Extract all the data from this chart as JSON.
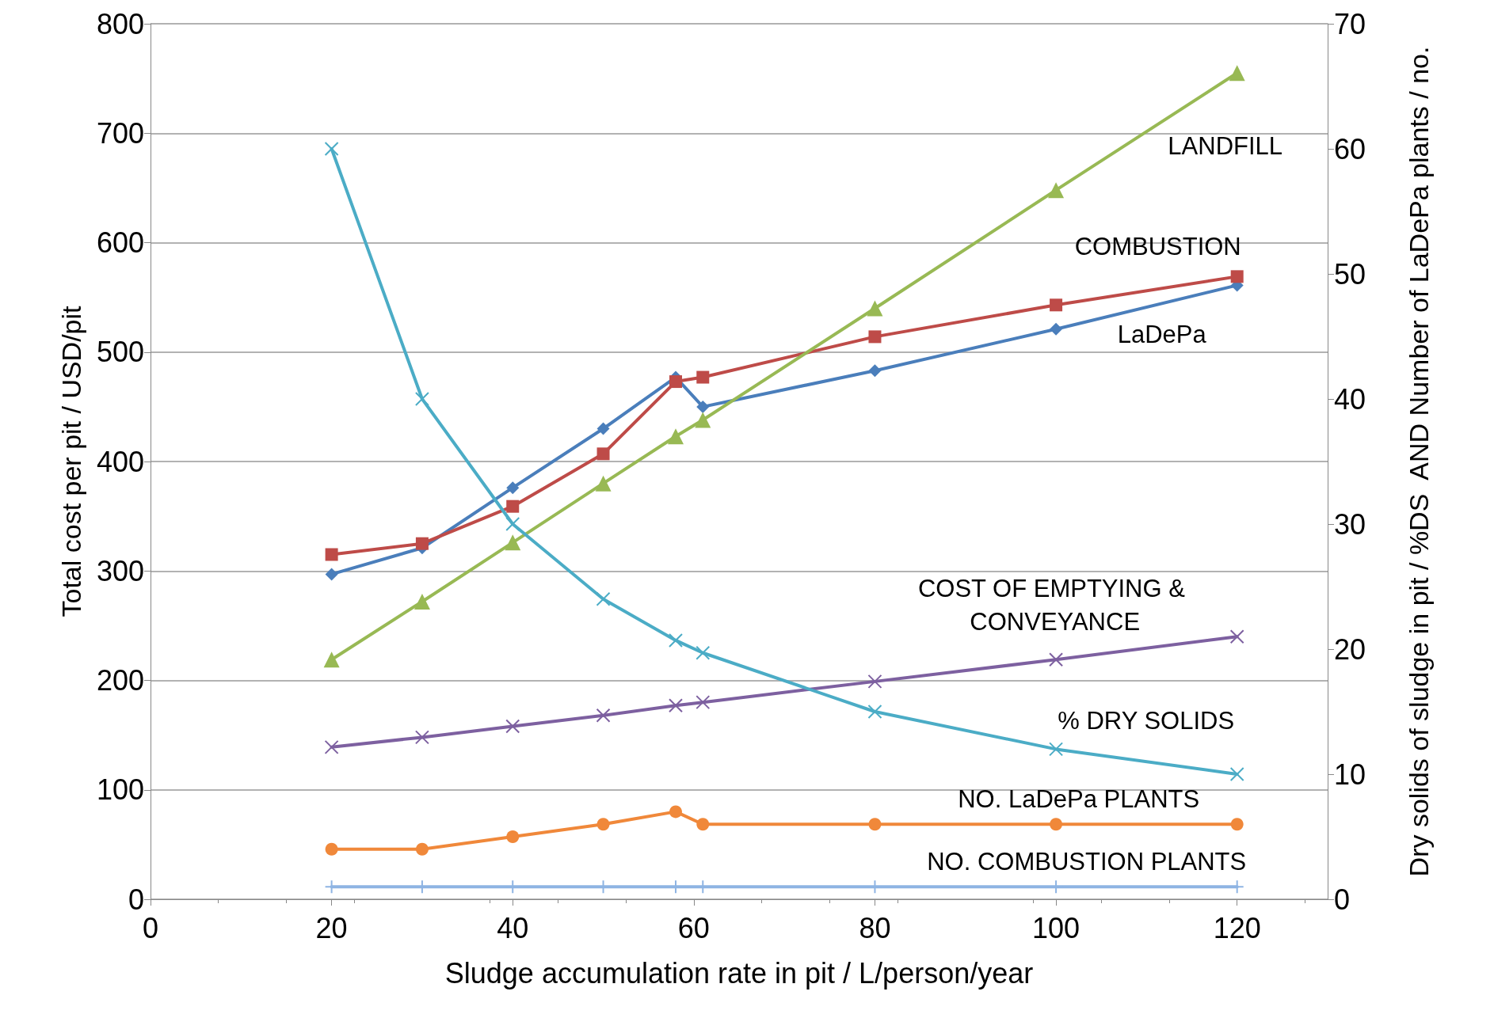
{
  "chart_data": {
    "type": "line",
    "xlabel": "Sludge accumulation rate in pit / L/person/year",
    "ylabel": "Total cost per pit / USD/pit",
    "y2label": "Dry solids of sludge in pit / %DS  AND Number of LaDePa plants / no.",
    "x": [
      20,
      30,
      40,
      50,
      58,
      61,
      80,
      100,
      120
    ],
    "xlim": [
      0,
      130
    ],
    "xticks": [
      0,
      20,
      40,
      60,
      80,
      100,
      120
    ],
    "ylim": [
      0,
      800
    ],
    "yticks": [
      0,
      100,
      200,
      300,
      400,
      500,
      600,
      700,
      800
    ],
    "y2lim": [
      0,
      70
    ],
    "y2ticks": [
      0,
      10,
      20,
      30,
      40,
      50,
      60,
      70
    ],
    "grid": "y",
    "legend": false,
    "series": [
      {
        "name": "LaDePa",
        "color": "#4a7ebb",
        "marker": "diamond",
        "values": [
          297,
          321,
          376,
          430,
          477,
          450,
          483,
          521,
          561
        ]
      },
      {
        "name": "COMBUSTION",
        "color": "#be4b48",
        "marker": "square",
        "values": [
          315,
          325,
          359,
          407,
          473,
          477,
          514,
          543,
          569
        ]
      },
      {
        "name": "LANDFILL",
        "color": "#98b954",
        "marker": "triangle",
        "values": [
          219,
          272,
          326,
          380,
          423,
          438,
          540,
          648,
          755
        ]
      },
      {
        "name": "COST OF EMPTYING & CONVEYANCE",
        "color": "#7d60a0",
        "marker": "cross",
        "values": [
          139,
          148,
          158,
          168,
          177,
          180,
          199,
          219,
          240
        ]
      },
      {
        "name": "% DRY SOLIDS",
        "color": "#4bacc6",
        "marker": "cross",
        "axis": "y2",
        "values": [
          60,
          40,
          30,
          24,
          20.7,
          19.7,
          15,
          12,
          10
        ]
      },
      {
        "name": "NO. LaDePa PLANTS",
        "color": "#f0883a",
        "marker": "circle",
        "axis": "y2",
        "values": [
          4,
          4,
          5,
          6,
          7,
          6,
          6,
          6,
          6
        ]
      },
      {
        "name": "NO. COMBUSTION PLANTS",
        "color": "#8eb4e3",
        "marker": "plus",
        "axis": "y2",
        "values": [
          1,
          1,
          1,
          1,
          1,
          1,
          1,
          1,
          1
        ]
      }
    ]
  }
}
